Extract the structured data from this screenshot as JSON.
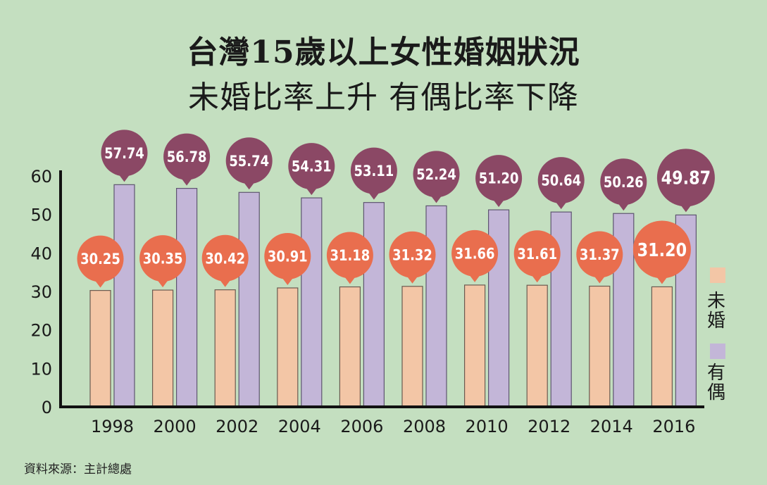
{
  "title_line1": "台灣15歲以上女性婚姻狀況",
  "title_line2": "未婚比率上升 有偶比率下降",
  "source": "資料來源：主計總處",
  "colors": {
    "background": "#c4dfc0",
    "unmarried_bar": "#f3c6a6",
    "married_bar": "#c3b6d8",
    "unmarried_bubble": "#e96e4e",
    "married_bubble": "#8b4865"
  },
  "chart_data": {
    "type": "bar",
    "categories": [
      "1998",
      "2000",
      "2002",
      "2004",
      "2006",
      "2008",
      "2010",
      "2012",
      "2014",
      "2016"
    ],
    "series": [
      {
        "name": "未婚",
        "values": [
          30.25,
          30.35,
          30.42,
          30.91,
          31.18,
          31.32,
          31.66,
          31.61,
          31.37,
          31.2
        ],
        "labels": [
          "30.25",
          "30.35",
          "30.42",
          "30.91",
          "31.18",
          "31.32",
          "31.66",
          "31.61",
          "31.37",
          "31.20"
        ]
      },
      {
        "name": "有偶",
        "values": [
          57.74,
          56.78,
          55.74,
          54.31,
          53.11,
          52.24,
          51.2,
          50.64,
          50.26,
          49.87
        ],
        "labels": [
          "57.74",
          "56.78",
          "55.74",
          "54.31",
          "53.11",
          "52.24",
          "51.20",
          "50.64",
          "50.26",
          "49.87"
        ]
      }
    ],
    "yticks": [
      "0",
      "10",
      "20",
      "30",
      "40",
      "50",
      "60"
    ],
    "ylim": [
      0,
      60
    ],
    "legend": [
      {
        "label_top": "未",
        "label_bottom": "婚"
      },
      {
        "label_top": "有",
        "label_bottom": "偶"
      }
    ],
    "legend_position": "right"
  }
}
